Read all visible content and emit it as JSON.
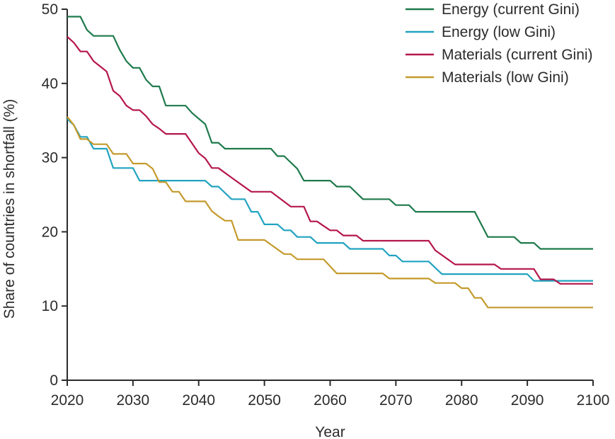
{
  "chart_data": {
    "type": "line",
    "title": "",
    "xlabel": "Year",
    "ylabel": "Share of countries in shortfall (%)",
    "xlim": [
      2020,
      2100
    ],
    "ylim": [
      0,
      50
    ],
    "xticks": [
      2020,
      2030,
      2040,
      2050,
      2060,
      2070,
      2080,
      2090,
      2100
    ],
    "yticks": [
      0,
      10,
      20,
      30,
      40,
      50
    ],
    "grid": false,
    "legend_position": "top-right",
    "series": [
      {
        "name": "Energy (current Gini)",
        "color": "#1e7a4b",
        "points": [
          [
            2020,
            49.0
          ],
          [
            2022,
            49.0
          ],
          [
            2023,
            47.2
          ],
          [
            2024,
            46.4
          ],
          [
            2027,
            46.4
          ],
          [
            2028,
            44.5
          ],
          [
            2029,
            43.0
          ],
          [
            2030,
            42.1
          ],
          [
            2031,
            42.1
          ],
          [
            2032,
            40.5
          ],
          [
            2033,
            39.6
          ],
          [
            2034,
            39.6
          ],
          [
            2035,
            37.0
          ],
          [
            2038,
            37.0
          ],
          [
            2039,
            36.0
          ],
          [
            2041,
            34.5
          ],
          [
            2042,
            32.0
          ],
          [
            2043,
            32.0
          ],
          [
            2044,
            31.2
          ],
          [
            2051,
            31.2
          ],
          [
            2052,
            30.2
          ],
          [
            2053,
            30.2
          ],
          [
            2055,
            28.5
          ],
          [
            2056,
            26.9
          ],
          [
            2060,
            26.9
          ],
          [
            2061,
            26.1
          ],
          [
            2063,
            26.1
          ],
          [
            2065,
            24.4
          ],
          [
            2069,
            24.4
          ],
          [
            2070,
            23.6
          ],
          [
            2072,
            23.6
          ],
          [
            2073,
            22.7
          ],
          [
            2082,
            22.7
          ],
          [
            2084,
            19.3
          ],
          [
            2088,
            19.3
          ],
          [
            2089,
            18.5
          ],
          [
            2091,
            18.5
          ],
          [
            2092,
            17.7
          ],
          [
            2100,
            17.7
          ]
        ]
      },
      {
        "name": "Energy (low Gini)",
        "color": "#21a3c0",
        "points": [
          [
            2020,
            35.2
          ],
          [
            2021,
            34.4
          ],
          [
            2022,
            32.8
          ],
          [
            2023,
            32.8
          ],
          [
            2024,
            31.2
          ],
          [
            2026,
            31.2
          ],
          [
            2027,
            28.6
          ],
          [
            2030,
            28.6
          ],
          [
            2031,
            26.9
          ],
          [
            2041,
            26.9
          ],
          [
            2042,
            26.1
          ],
          [
            2043,
            26.1
          ],
          [
            2045,
            24.4
          ],
          [
            2047,
            24.4
          ],
          [
            2048,
            22.7
          ],
          [
            2049,
            22.7
          ],
          [
            2050,
            21.0
          ],
          [
            2052,
            21.0
          ],
          [
            2053,
            20.2
          ],
          [
            2054,
            20.2
          ],
          [
            2055,
            19.3
          ],
          [
            2057,
            19.3
          ],
          [
            2058,
            18.5
          ],
          [
            2062,
            18.5
          ],
          [
            2063,
            17.7
          ],
          [
            2068,
            17.7
          ],
          [
            2069,
            16.8
          ],
          [
            2070,
            16.8
          ],
          [
            2071,
            16.0
          ],
          [
            2075,
            16.0
          ],
          [
            2077,
            14.3
          ],
          [
            2090,
            14.3
          ],
          [
            2091,
            13.4
          ],
          [
            2100,
            13.4
          ]
        ]
      },
      {
        "name": "Materials (current Gini)",
        "color": "#b5174a",
        "points": [
          [
            2020,
            46.3
          ],
          [
            2021,
            45.5
          ],
          [
            2022,
            44.3
          ],
          [
            2023,
            44.3
          ],
          [
            2024,
            43.0
          ],
          [
            2026,
            41.6
          ],
          [
            2027,
            39.0
          ],
          [
            2028,
            38.3
          ],
          [
            2029,
            37.0
          ],
          [
            2030,
            36.4
          ],
          [
            2031,
            36.4
          ],
          [
            2032,
            35.6
          ],
          [
            2033,
            34.5
          ],
          [
            2034,
            33.9
          ],
          [
            2035,
            33.2
          ],
          [
            2038,
            33.2
          ],
          [
            2040,
            30.6
          ],
          [
            2041,
            29.9
          ],
          [
            2042,
            28.6
          ],
          [
            2043,
            28.6
          ],
          [
            2045,
            27.3
          ],
          [
            2048,
            25.4
          ],
          [
            2051,
            25.4
          ],
          [
            2054,
            23.4
          ],
          [
            2056,
            23.4
          ],
          [
            2057,
            21.4
          ],
          [
            2058,
            21.4
          ],
          [
            2060,
            20.2
          ],
          [
            2061,
            20.2
          ],
          [
            2062,
            19.5
          ],
          [
            2064,
            19.5
          ],
          [
            2065,
            18.8
          ],
          [
            2075,
            18.8
          ],
          [
            2076,
            17.5
          ],
          [
            2079,
            15.6
          ],
          [
            2085,
            15.6
          ],
          [
            2086,
            15.0
          ],
          [
            2091,
            15.0
          ],
          [
            2092,
            13.6
          ],
          [
            2094,
            13.6
          ],
          [
            2095,
            13.0
          ],
          [
            2100,
            13.0
          ]
        ]
      },
      {
        "name": "Materials (low Gini)",
        "color": "#c49a2c",
        "points": [
          [
            2020,
            35.5
          ],
          [
            2021,
            34.4
          ],
          [
            2022,
            32.5
          ],
          [
            2023,
            32.5
          ],
          [
            2024,
            31.8
          ],
          [
            2026,
            31.8
          ],
          [
            2027,
            30.5
          ],
          [
            2029,
            30.5
          ],
          [
            2030,
            29.2
          ],
          [
            2032,
            29.2
          ],
          [
            2033,
            28.5
          ],
          [
            2034,
            26.7
          ],
          [
            2035,
            26.7
          ],
          [
            2036,
            25.4
          ],
          [
            2037,
            25.4
          ],
          [
            2038,
            24.1
          ],
          [
            2041,
            24.1
          ],
          [
            2042,
            22.8
          ],
          [
            2043,
            22.1
          ],
          [
            2044,
            21.5
          ],
          [
            2045,
            21.5
          ],
          [
            2046,
            18.9
          ],
          [
            2050,
            18.9
          ],
          [
            2053,
            17.0
          ],
          [
            2054,
            17.0
          ],
          [
            2055,
            16.3
          ],
          [
            2059,
            16.3
          ],
          [
            2061,
            14.4
          ],
          [
            2068,
            14.4
          ],
          [
            2069,
            13.7
          ],
          [
            2075,
            13.7
          ],
          [
            2076,
            13.1
          ],
          [
            2079,
            13.1
          ],
          [
            2080,
            12.4
          ],
          [
            2081,
            12.4
          ],
          [
            2082,
            11.1
          ],
          [
            2083,
            11.1
          ],
          [
            2084,
            9.8
          ],
          [
            2100,
            9.8
          ]
        ]
      }
    ]
  }
}
